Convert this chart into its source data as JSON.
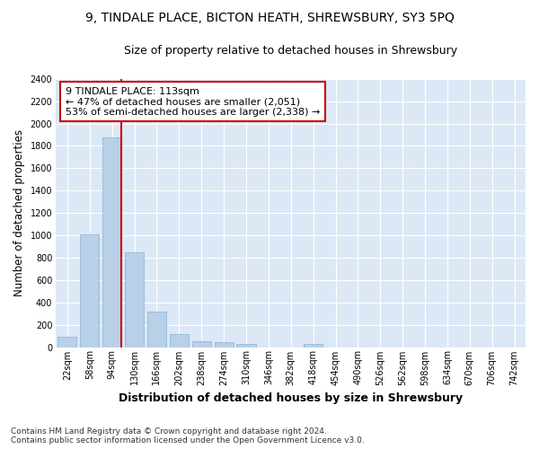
{
  "title": "9, TINDALE PLACE, BICTON HEATH, SHREWSBURY, SY3 5PQ",
  "subtitle": "Size of property relative to detached houses in Shrewsbury",
  "xlabel": "Distribution of detached houses by size in Shrewsbury",
  "ylabel": "Number of detached properties",
  "categories": [
    "22sqm",
    "58sqm",
    "94sqm",
    "130sqm",
    "166sqm",
    "202sqm",
    "238sqm",
    "274sqm",
    "310sqm",
    "346sqm",
    "382sqm",
    "418sqm",
    "454sqm",
    "490sqm",
    "526sqm",
    "562sqm",
    "598sqm",
    "634sqm",
    "670sqm",
    "706sqm",
    "742sqm"
  ],
  "values": [
    90,
    1010,
    1880,
    850,
    320,
    115,
    55,
    45,
    30,
    0,
    0,
    30,
    0,
    0,
    0,
    0,
    0,
    0,
    0,
    0,
    0
  ],
  "bar_color": "#b8d0e8",
  "bar_edge_color": "#8ab0d0",
  "plot_bg_color": "#dce8f5",
  "fig_bg_color": "#ffffff",
  "grid_color": "#ffffff",
  "vline_color": "#cc0000",
  "vline_position": 2.43,
  "annotation_text": "9 TINDALE PLACE: 113sqm\n← 47% of detached houses are smaller (2,051)\n53% of semi-detached houses are larger (2,338) →",
  "annotation_box_facecolor": "#ffffff",
  "annotation_box_edgecolor": "#cc0000",
  "ylim": [
    0,
    2400
  ],
  "yticks": [
    0,
    200,
    400,
    600,
    800,
    1000,
    1200,
    1400,
    1600,
    1800,
    2000,
    2200,
    2400
  ],
  "footer": "Contains HM Land Registry data © Crown copyright and database right 2024.\nContains public sector information licensed under the Open Government Licence v3.0.",
  "title_fontsize": 10,
  "subtitle_fontsize": 9,
  "annotation_fontsize": 8,
  "tick_fontsize": 7,
  "ylabel_fontsize": 8.5,
  "xlabel_fontsize": 9,
  "footer_fontsize": 6.5
}
